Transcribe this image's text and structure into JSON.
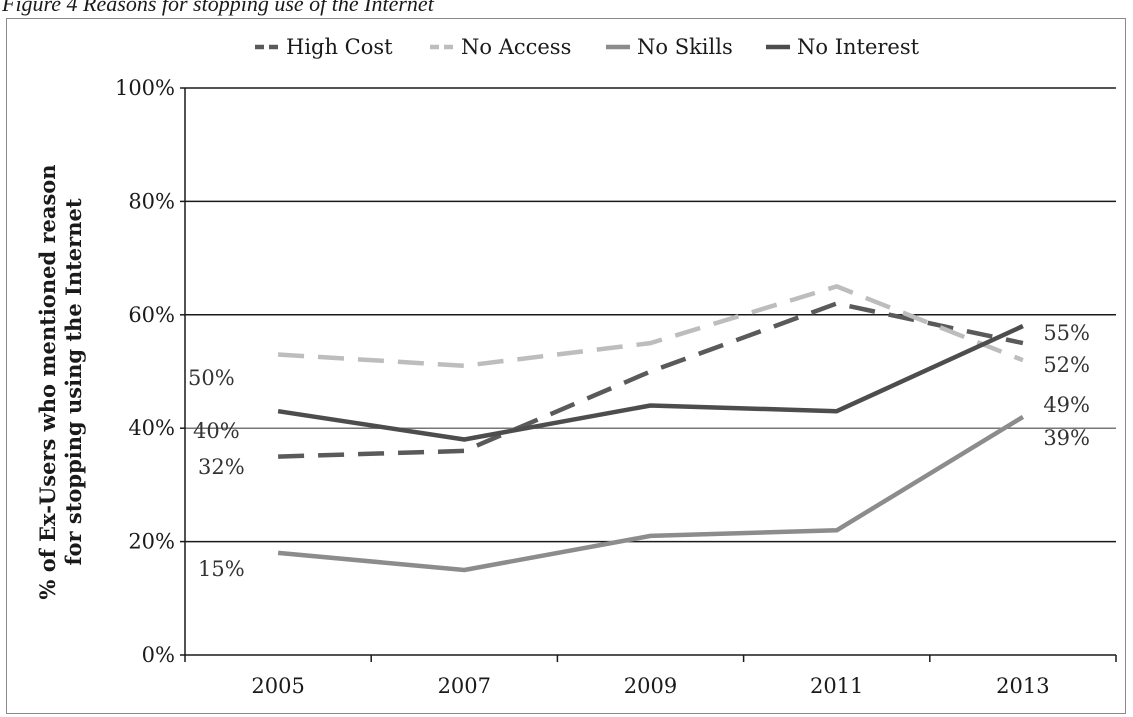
{
  "caption": "Figure 4 Reasons for stopping use of the Internet",
  "chart_data": {
    "type": "line",
    "categories": [
      "2005",
      "2007",
      "2009",
      "2011",
      "2013"
    ],
    "ylabel_lines": [
      "% of Ex-Users who mentioned reason",
      "for stopping using the Internet"
    ],
    "ylim": [
      0,
      100
    ],
    "yticks": [
      0,
      20,
      40,
      60,
      80,
      100
    ],
    "ytick_labels": [
      "0%",
      "20%",
      "40%",
      "60%",
      "80%",
      "100%"
    ],
    "grid": true,
    "legend_position": "top",
    "series": [
      {
        "name": "High Cost",
        "values": [
          35,
          36,
          50,
          62,
          55
        ],
        "color": "#5a5a5a",
        "dash": "dashed"
      },
      {
        "name": "No Access",
        "values": [
          53,
          51,
          55,
          65,
          52
        ],
        "color": "#bdbdbd",
        "dash": "dashed"
      },
      {
        "name": "No Skills",
        "values": [
          18,
          15,
          21,
          22,
          42
        ],
        "color": "#8c8c8c",
        "dash": "solid"
      },
      {
        "name": "No Interest",
        "values": [
          43,
          38,
          44,
          43,
          58
        ],
        "color": "#4d4d4d",
        "dash": "solid"
      }
    ],
    "annotations": [
      "50%",
      "40%",
      "32%",
      "15%",
      "55%",
      "52%",
      "49%",
      "39%"
    ]
  }
}
